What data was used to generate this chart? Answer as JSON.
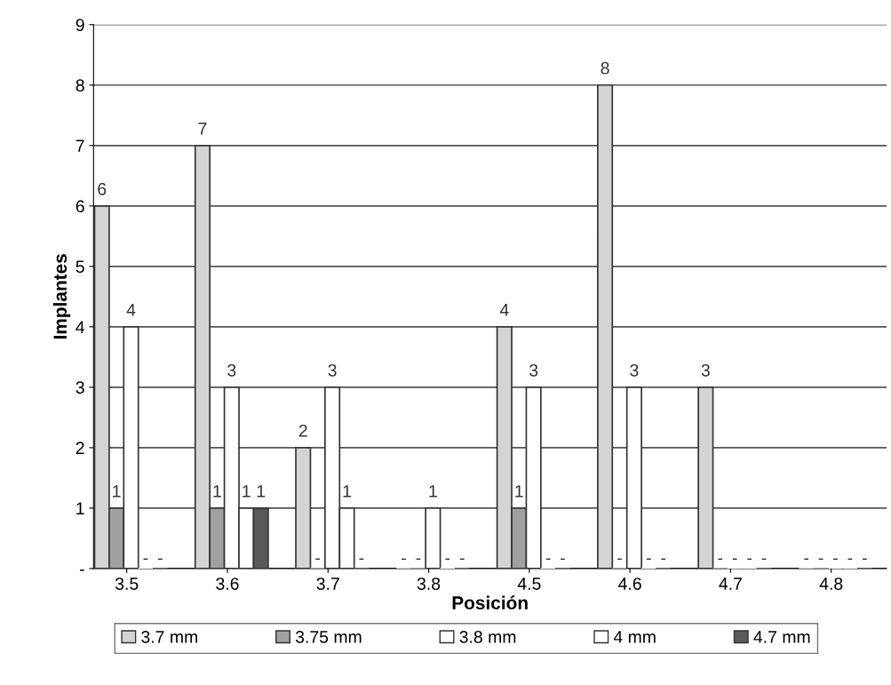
{
  "chart_data": {
    "type": "bar",
    "xlabel": "Posición",
    "ylabel": "Implantes",
    "categories": [
      "3.5",
      "3.6",
      "3.7",
      "3.8",
      "4.5",
      "4.6",
      "4.7",
      "4.8"
    ],
    "series": [
      {
        "name": "3.7 mm",
        "color": "#d4d4d4",
        "values": [
          6,
          7,
          2,
          0,
          4,
          8,
          3,
          0
        ],
        "value_labels": [
          "6",
          "7",
          "2",
          "-",
          "4",
          "8",
          "3",
          "-"
        ]
      },
      {
        "name": "3.75 mm",
        "color": "#a0a0a0",
        "values": [
          1,
          1,
          0,
          0,
          1,
          0,
          0,
          0
        ],
        "value_labels": [
          "1",
          "1",
          "-",
          "-",
          "1",
          "-",
          "-",
          "-"
        ]
      },
      {
        "name": "3.8 mm",
        "color": "#ffffff",
        "values": [
          4,
          3,
          3,
          1,
          3,
          3,
          0,
          0
        ],
        "value_labels": [
          "4",
          "3",
          "3",
          "1",
          "3",
          "3",
          "-",
          "-"
        ]
      },
      {
        "name": "4 mm",
        "color": "#ffffff",
        "values": [
          0,
          1,
          1,
          0,
          0,
          0,
          0,
          0
        ],
        "value_labels": [
          "-",
          "1",
          "1",
          "-",
          "-",
          "-",
          "-",
          "-"
        ]
      },
      {
        "name": "4.7 mm",
        "color": "#5a5a5a",
        "values": [
          0,
          1,
          0,
          0,
          0,
          0,
          0,
          0
        ],
        "value_labels": [
          "-",
          "1",
          "-",
          "-",
          "-",
          "-",
          "-",
          "-"
        ]
      }
    ],
    "ylim": [
      0,
      9
    ],
    "yticks": [
      {
        "value": 0,
        "label": "-"
      },
      1,
      2,
      3,
      4,
      5,
      6,
      7,
      8,
      9
    ],
    "grid": "y",
    "legend": "bottom"
  }
}
